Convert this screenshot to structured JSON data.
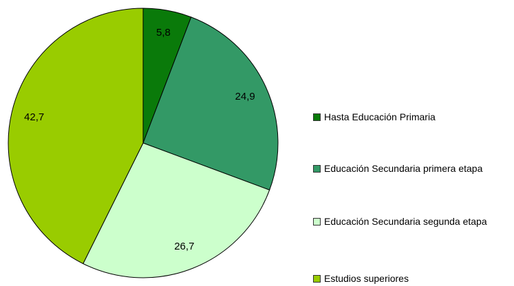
{
  "chart_data": {
    "type": "pie",
    "categories": [
      "Hasta Educación Primaria",
      "Educación Secundaria primera etapa",
      "Educación Secundaria segunda etapa",
      "Estudios superiores"
    ],
    "values": [
      5.8,
      24.9,
      26.7,
      42.7
    ],
    "value_labels": [
      "5,8",
      "24,9",
      "26,7",
      "42,7"
    ],
    "colors": [
      "#0a7a0a",
      "#339966",
      "#ccffcc",
      "#99cc00"
    ],
    "legend": "right"
  }
}
